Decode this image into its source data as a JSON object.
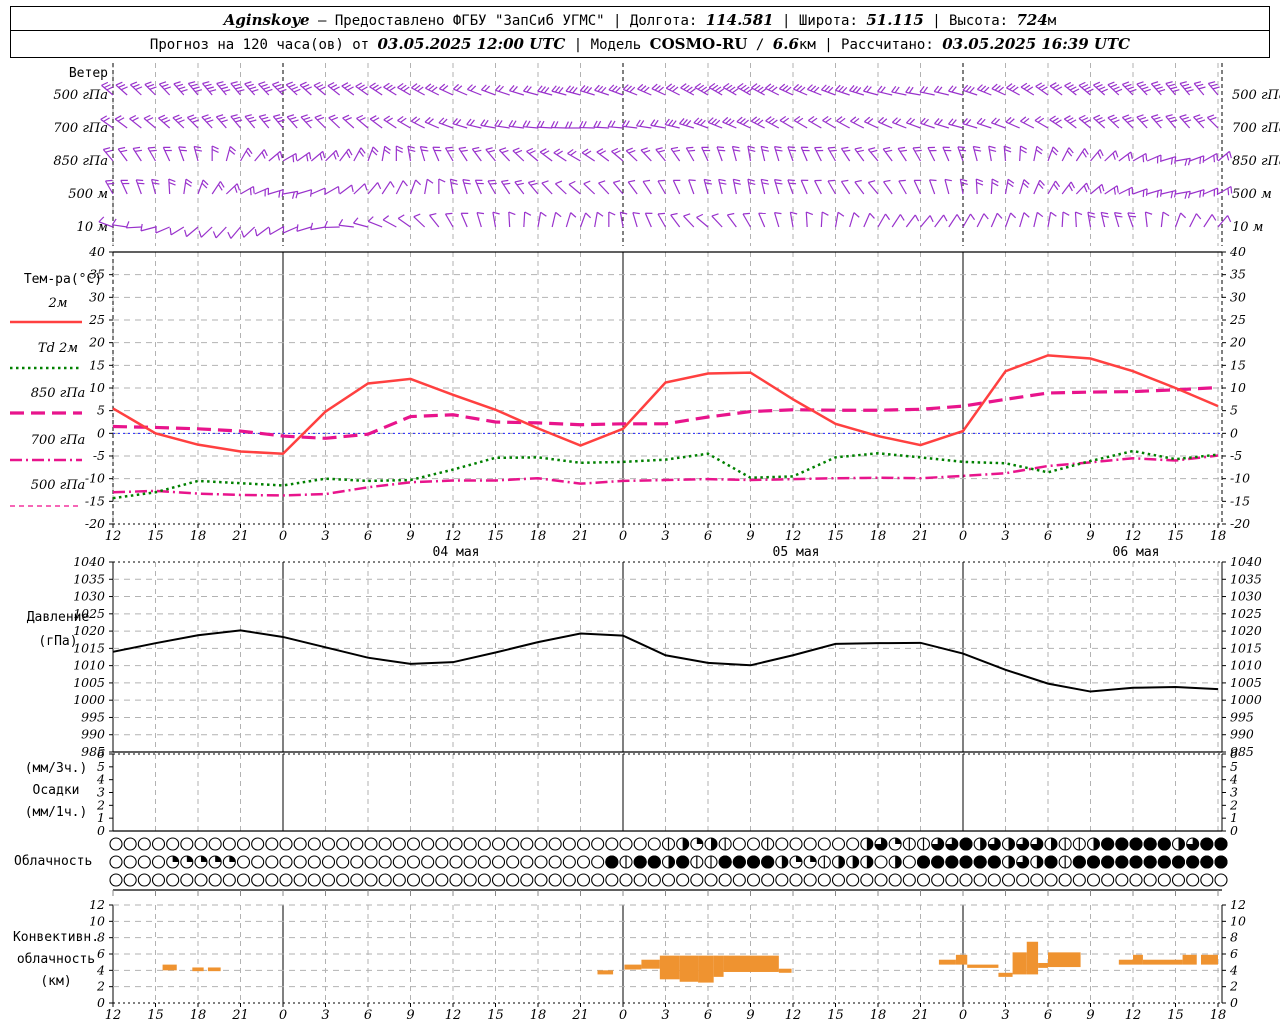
{
  "header": {
    "line1": [
      {
        "t": "Aginskoye",
        "s": "bi"
      },
      {
        "t": " — Предоставлено ФГБУ \"ЗапСиб УГМС\"",
        "s": "n"
      },
      {
        "t": "  |  Долгота: ",
        "s": "n"
      },
      {
        "t": "114.581",
        "s": "bi"
      },
      {
        "t": "  |  Широта: ",
        "s": "n"
      },
      {
        "t": "51.115",
        "s": "bi"
      },
      {
        "t": "  |  Высота: ",
        "s": "n"
      },
      {
        "t": "724",
        "s": "bi"
      },
      {
        "t": "м",
        "s": "n"
      }
    ],
    "line2": [
      {
        "t": "Прогноз на 120 часа(ов) от ",
        "s": "n"
      },
      {
        "t": "03.05.2025 12:00 UTC",
        "s": "bi"
      },
      {
        "t": "  |  Модель ",
        "s": "n"
      },
      {
        "t": "COSMO-RU",
        "s": "b"
      },
      {
        "t": " / ",
        "s": "n"
      },
      {
        "t": "6.6",
        "s": "bi"
      },
      {
        "t": "км  |  Рассчитано: ",
        "s": "n"
      },
      {
        "t": "03.05.2025 16:39 UTC",
        "s": "bi"
      }
    ]
  },
  "time_axis": {
    "step_hours": 3,
    "hours_span": 78,
    "ticks": [
      "12",
      "15",
      "18",
      "21",
      "0",
      "3",
      "6",
      "9",
      "12",
      "15",
      "18",
      "21",
      "0",
      "3",
      "6",
      "9",
      "12",
      "15",
      "18",
      "21",
      "0",
      "3",
      "6",
      "9",
      "12",
      "15",
      "18"
    ],
    "dates": [
      "04 мая",
      "05 мая",
      "06 мая"
    ]
  },
  "colors": {
    "wind_barbs": "#9932cc",
    "t2m": "#ff4040",
    "td2m": "#008000",
    "t850": "#e8148c",
    "t700": "#e8148c",
    "t500": "#f666b6",
    "zero_line": "#2020ff",
    "pressure": "#000000",
    "convective_bars": "#ef9330",
    "grid": "#b2b2b2",
    "axis": "#000000"
  },
  "chart_data": [
    {
      "id": "wind",
      "type": "barbs",
      "title": "Ветер",
      "levels": [
        {
          "label": "500 гПа",
          "dirs_deg": [
            310,
            315,
            320,
            320,
            315,
            310,
            305,
            300,
            295,
            290,
            285,
            285,
            290,
            295,
            300,
            300,
            295,
            290,
            285,
            280,
            285,
            295,
            305,
            310,
            315,
            320,
            320
          ],
          "speeds_ms": [
            8,
            8,
            10,
            10,
            10,
            8,
            8,
            8,
            6,
            6,
            6,
            8,
            8,
            8,
            10,
            10,
            8,
            8,
            6,
            6,
            6,
            8,
            8,
            10,
            10,
            10,
            8
          ]
        },
        {
          "label": "700 гПа",
          "dirs_deg": [
            305,
            310,
            315,
            320,
            320,
            315,
            310,
            300,
            290,
            280,
            275,
            270,
            275,
            280,
            290,
            295,
            300,
            300,
            295,
            290,
            285,
            290,
            300,
            310,
            315,
            320,
            315
          ],
          "speeds_ms": [
            6,
            6,
            8,
            8,
            8,
            6,
            6,
            6,
            5,
            5,
            5,
            6,
            6,
            6,
            8,
            8,
            6,
            6,
            5,
            5,
            5,
            6,
            6,
            8,
            8,
            8,
            6
          ]
        },
        {
          "label": "850 гПа",
          "dirs_deg": [
            320,
            330,
            345,
            390,
            420,
            405,
            380,
            350,
            330,
            320,
            310,
            300,
            310,
            320,
            335,
            350,
            340,
            330,
            320,
            330,
            340,
            355,
            380,
            400,
            420,
            440,
            410
          ],
          "speeds_ms": [
            5,
            5,
            6,
            6,
            5,
            4,
            4,
            4,
            4,
            5,
            5,
            4,
            4,
            4,
            5,
            5,
            4,
            4,
            4,
            4,
            4,
            5,
            5,
            6,
            6,
            5,
            5
          ]
        },
        {
          "label": "500 м",
          "dirs_deg": [
            330,
            345,
            380,
            420,
            440,
            420,
            400,
            380,
            350,
            330,
            320,
            310,
            320,
            330,
            345,
            350,
            340,
            330,
            320,
            335,
            350,
            370,
            390,
            410,
            430,
            440,
            420
          ],
          "speeds_ms": [
            4,
            4,
            5,
            5,
            4,
            3,
            3,
            3,
            4,
            4,
            4,
            3,
            3,
            3,
            4,
            4,
            4,
            3,
            3,
            3,
            4,
            4,
            4,
            5,
            5,
            4,
            4
          ]
        },
        {
          "label": "10 м",
          "dirs_deg": [
            290,
            255,
            230,
            220,
            240,
            260,
            285,
            305,
            330,
            350,
            370,
            380,
            350,
            330,
            310,
            330,
            350,
            370,
            390,
            400,
            390,
            380,
            370,
            350,
            340,
            380,
            400
          ],
          "speeds_ms": [
            2,
            2,
            3,
            3,
            2,
            2,
            2,
            2,
            3,
            3,
            3,
            2,
            2,
            2,
            3,
            3,
            3,
            2,
            2,
            2,
            3,
            3,
            3,
            4,
            4,
            3,
            3
          ]
        }
      ]
    },
    {
      "id": "temperature",
      "type": "line",
      "ylabel": "Тем-ра(°C)",
      "ylim": [
        -20,
        40
      ],
      "ytick_labels": [
        "40",
        "35",
        "30",
        "25",
        "20",
        "15",
        "10",
        "5",
        "0",
        "-5",
        "-10",
        "-15",
        "-20"
      ],
      "zero_line": true,
      "series": [
        {
          "name": "2м",
          "color": "#ff4040",
          "dash": "solid",
          "values": [
            5.5,
            0,
            -2.5,
            -4,
            -4.5,
            4.8,
            11,
            12,
            8.5,
            5.2,
            1.1,
            -2.7,
            1,
            11.2,
            13.2,
            13.4,
            7.5,
            2.1,
            -0.6,
            -2.6,
            0.5,
            13.7,
            17.2,
            16.5,
            13.7,
            10,
            6
          ]
        },
        {
          "name": "Td 2м",
          "color": "#008000",
          "dash": "dotted",
          "values": [
            -14.3,
            -13,
            -10.5,
            -11,
            -11.5,
            -10,
            -10.5,
            -10.3,
            -8,
            -5.4,
            -5.3,
            -6.5,
            -6.3,
            -5.8,
            -4.5,
            -9.8,
            -9.5,
            -5.3,
            -4.4,
            -5.3,
            -6.3,
            -6.6,
            -8.6,
            -6.1,
            -3.9,
            -5.7,
            -4.7
          ]
        },
        {
          "name": "850 гПа",
          "color": "#e8148c",
          "dash": "longdash",
          "values": [
            1.5,
            1.3,
            1.0,
            0.5,
            -0.6,
            -1.1,
            -0.2,
            3.7,
            4.1,
            2.5,
            2.3,
            1.9,
            2.1,
            2.1,
            3.6,
            4.8,
            5.2,
            5.1,
            5.1,
            5.3,
            6.0,
            7.5,
            8.9,
            9.1,
            9.2,
            9.6,
            10.1
          ]
        },
        {
          "name": "700 гПа",
          "color": "#e8148c",
          "dash": "dashdot",
          "values": [
            -13,
            -12.7,
            -13.3,
            -13.6,
            -13.7,
            -13.4,
            -11.9,
            -10.8,
            -10.4,
            -10.4,
            -9.9,
            -11.1,
            -10.5,
            -10.3,
            -10.1,
            -10.3,
            -10.1,
            -9.9,
            -9.8,
            -9.9,
            -9.4,
            -8.8,
            -7.2,
            -6.4,
            -5.5,
            -6.0,
            -4.9
          ]
        },
        {
          "name": "500 гПа",
          "color": "#f666b6",
          "dash": "shortdash",
          "values": null,
          "note": "below -20, outside visible axis range"
        }
      ]
    },
    {
      "id": "pressure",
      "type": "line",
      "ylabel_lines": [
        "Давление",
        "(гПа)"
      ],
      "ylim": [
        985,
        1040
      ],
      "ytick_labels": [
        "1040",
        "1035",
        "1030",
        "1025",
        "1020",
        "1015",
        "1010",
        "1005",
        "1000",
        "995",
        "990",
        "985"
      ],
      "values": [
        1014,
        1016.5,
        1018.8,
        1020.2,
        1018.3,
        1015.3,
        1012.3,
        1010.5,
        1011,
        1013.8,
        1016.8,
        1019.3,
        1018.7,
        1013,
        1010.8,
        1010.1,
        1013,
        1016.3,
        1016.5,
        1016.6,
        1013.5,
        1008.8,
        1004.8,
        1002.5,
        1003.6,
        1003.8,
        1003.2
      ]
    },
    {
      "id": "precipitation",
      "type": "bar",
      "ylabel_lines": [
        "(мм/3ч.)",
        "Осадки",
        "(мм/1ч.)"
      ],
      "ylim": [
        0,
        6
      ],
      "ytick_labels": [
        "6",
        "5",
        "4",
        "3",
        "2",
        "1",
        "0"
      ],
      "values": []
    },
    {
      "id": "cloudiness",
      "type": "symbols",
      "label": "Облачность",
      "rows": [
        {
          "name": "upper",
          "oktas": "0000000000000000000000000000000000000001424100100000046211668464664114888884688"
        },
        {
          "name": "middle",
          "oktas": "00002222200000000000000000000000000818848118888422144404088888846481888888888888"
        },
        {
          "name": "lower",
          "oktas": "0000000000000000000000000000000000000000000000000000000000000000000000000000000"
        }
      ]
    },
    {
      "id": "convective",
      "type": "rangebar",
      "label_lines": [
        "Конвективн.",
        "облачность",
        "(км)"
      ],
      "ylim": [
        0,
        12
      ],
      "ytick_labels": [
        "12",
        "10",
        "8",
        "6",
        "4",
        "2",
        "0"
      ],
      "bars_km": [
        [
          3.5,
          4.5,
          4.0,
          4.7
        ],
        [
          5.6,
          6.4,
          3.9,
          4.35
        ],
        [
          6.7,
          7.6,
          3.9,
          4.35
        ],
        [
          34.2,
          35.3,
          3.5,
          4.0
        ],
        [
          36.1,
          37.3,
          4.1,
          4.7
        ],
        [
          37.3,
          38.6,
          4.2,
          5.3
        ],
        [
          38.6,
          40.0,
          2.9,
          5.8
        ],
        [
          40.0,
          41.3,
          2.6,
          5.8
        ],
        [
          41.3,
          42.4,
          2.5,
          5.8
        ],
        [
          42.4,
          43.1,
          3.2,
          5.8
        ],
        [
          43.1,
          47.0,
          3.8,
          5.8
        ],
        [
          47.0,
          47.9,
          3.7,
          4.2
        ],
        [
          58.3,
          59.5,
          4.7,
          5.3
        ],
        [
          59.5,
          60.3,
          4.7,
          5.9
        ],
        [
          60.3,
          62.5,
          4.3,
          4.7
        ],
        [
          62.5,
          63.5,
          3.2,
          3.7
        ],
        [
          63.5,
          64.5,
          3.5,
          6.2
        ],
        [
          64.5,
          65.3,
          3.5,
          7.5
        ],
        [
          65.3,
          66.0,
          4.3,
          4.9
        ],
        [
          66.0,
          68.3,
          4.4,
          6.2
        ],
        [
          71.0,
          72.0,
          4.7,
          5.3
        ],
        [
          72.0,
          72.7,
          4.7,
          5.9
        ],
        [
          72.7,
          75.5,
          4.7,
          5.3
        ],
        [
          75.5,
          76.5,
          4.7,
          5.9
        ],
        [
          76.8,
          78.0,
          4.7,
          5.9
        ]
      ]
    }
  ]
}
